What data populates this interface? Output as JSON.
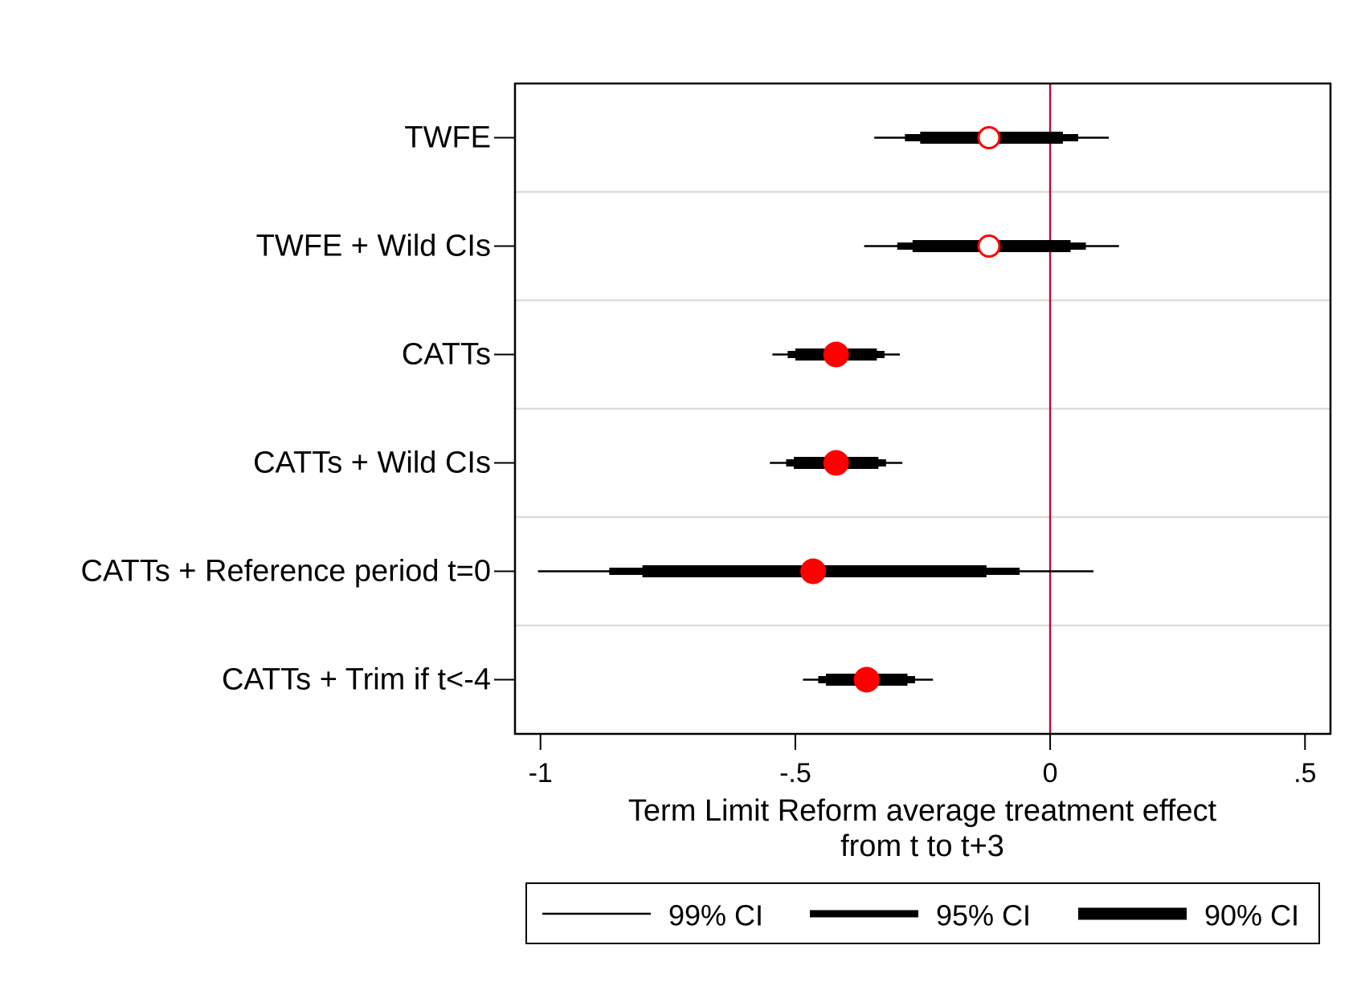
{
  "chart_data": {
    "type": "coefficient-plot",
    "xlabel_line1": "Term Limit Reform average treatment effect",
    "xlabel_line2": "from t to t+3",
    "xlim": [
      -1.05,
      0.55
    ],
    "xticks": [
      {
        "value": -1,
        "label": "-1"
      },
      {
        "value": -0.5,
        "label": "-.5"
      },
      {
        "value": 0,
        "label": "0"
      },
      {
        "value": 0.5,
        "label": ".5"
      }
    ],
    "reference_line": 0,
    "reference_color": "#b5103a",
    "marker_color": "#ff0000",
    "grid": true,
    "legend": {
      "position": "bottom",
      "entries": [
        {
          "key": "ci99",
          "label": "99% CI"
        },
        {
          "key": "ci95",
          "label": "95% CI"
        },
        {
          "key": "ci90",
          "label": "90% CI"
        }
      ]
    },
    "rows": [
      {
        "label": "TWFE",
        "estimate": -0.12,
        "marker": "hollow",
        "ci99": [
          -0.345,
          0.115
        ],
        "ci95": [
          -0.285,
          0.055
        ],
        "ci90": [
          -0.255,
          0.025
        ]
      },
      {
        "label": "TWFE + Wild CIs",
        "estimate": -0.12,
        "marker": "hollow",
        "ci99": [
          -0.365,
          0.135
        ],
        "ci95": [
          -0.3,
          0.07
        ],
        "ci90": [
          -0.27,
          0.04
        ]
      },
      {
        "label": "CATTs",
        "estimate": -0.42,
        "marker": "filled",
        "ci99": [
          -0.545,
          -0.295
        ],
        "ci95": [
          -0.515,
          -0.325
        ],
        "ci90": [
          -0.5,
          -0.34
        ]
      },
      {
        "label": "CATTs + Wild CIs",
        "estimate": -0.42,
        "marker": "filled",
        "ci99": [
          -0.55,
          -0.29
        ],
        "ci95": [
          -0.518,
          -0.322
        ],
        "ci90": [
          -0.503,
          -0.337
        ]
      },
      {
        "label": "CATTs + Reference period t=0",
        "estimate": -0.465,
        "marker": "filled",
        "ci99": [
          -1.005,
          0.085
        ],
        "ci95": [
          -0.865,
          -0.06
        ],
        "ci90": [
          -0.8,
          -0.125
        ]
      },
      {
        "label": "CATTs + Trim if t<-4",
        "estimate": -0.36,
        "marker": "filled",
        "ci99": [
          -0.485,
          -0.23
        ],
        "ci95": [
          -0.455,
          -0.265
        ],
        "ci90": [
          -0.44,
          -0.28
        ]
      }
    ]
  }
}
